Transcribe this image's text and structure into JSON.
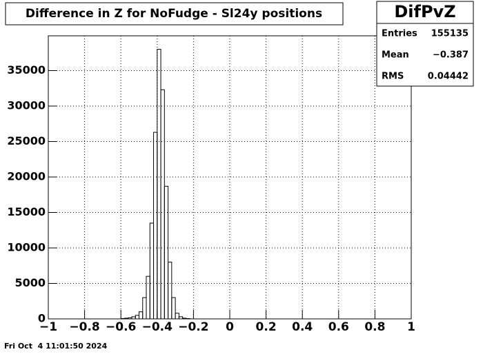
{
  "chart_data": {
    "type": "histogram",
    "title": "Difference in Z for NoFudge - Sl24y positions",
    "bins": [
      -0.6,
      -0.58,
      -0.56,
      -0.54,
      -0.52,
      -0.5,
      -0.48,
      -0.46,
      -0.44,
      -0.42,
      -0.4,
      -0.38,
      -0.36,
      -0.34,
      -0.32,
      -0.3,
      -0.28,
      -0.26,
      -0.24,
      -0.22
    ],
    "values": [
      50,
      100,
      150,
      300,
      500,
      1000,
      3000,
      6000,
      13500,
      26300,
      38000,
      32300,
      18700,
      8000,
      3000,
      800,
      300,
      100,
      50
    ],
    "color": "#000000",
    "xlim": [
      -1,
      1
    ],
    "xticks": [
      {
        "value": -1,
        "label": "−1"
      },
      {
        "value": -0.8,
        "label": "−0.8"
      },
      {
        "value": -0.6,
        "label": "−0.6"
      },
      {
        "value": -0.4,
        "label": "−0.4"
      },
      {
        "value": -0.2,
        "label": "−0.2"
      },
      0,
      0.2,
      0.4,
      0.6,
      0.8,
      1
    ],
    "ylim": [
      0,
      39900
    ],
    "yticks": [
      0,
      5000,
      10000,
      15000,
      20000,
      25000,
      30000,
      35000
    ],
    "grid": true,
    "stats": {
      "title": "DifPvZ",
      "rows": [
        [
          "Entries",
          "155135"
        ],
        [
          "Mean",
          "−0.387"
        ],
        [
          "RMS",
          "0.04442"
        ]
      ]
    },
    "footer": "Fri Oct  4 11:01:50 2024"
  }
}
